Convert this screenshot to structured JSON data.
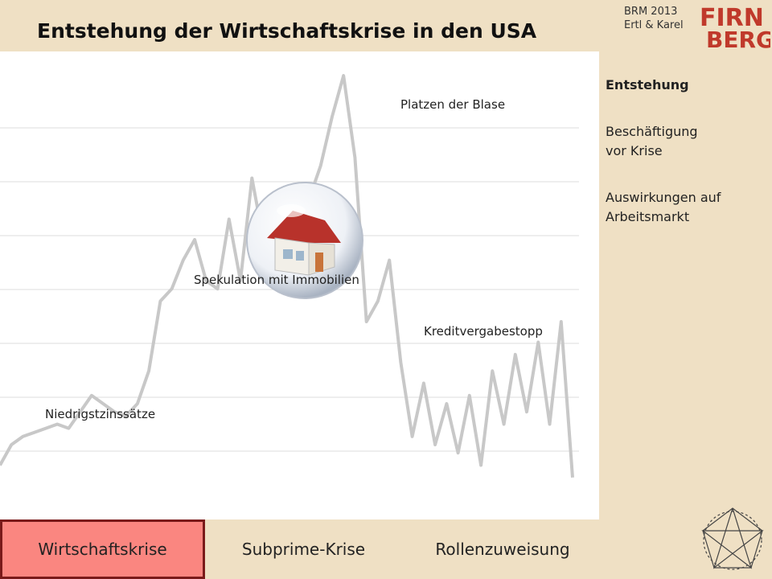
{
  "header": {
    "title": "Entstehung der Wirtschaftskrise in den USA",
    "meta_line1": "BRM 2013",
    "meta_line2": "Ertl & Karel",
    "logo_top": "FIRN",
    "logo_bottom": "BERG"
  },
  "chart": {
    "annotations": {
      "low_rates": "Niedrigstzinssätze",
      "speculation": "Spekulation mit Immobilien",
      "bubble_burst": "Platzen der Blase",
      "credit_stop": "Kreditvergabestopp"
    },
    "images": [
      "house-in-bubble-icon"
    ],
    "colors": {
      "line": "#c8c8c8",
      "grid": "#dddddd"
    }
  },
  "chart_data": {
    "type": "line",
    "title": "",
    "xlabel": "",
    "ylabel": "",
    "grid": true,
    "x": [
      0,
      2,
      4,
      6,
      8,
      10,
      12,
      14,
      16,
      18,
      20,
      22,
      24,
      26,
      28,
      30,
      32,
      34,
      36,
      38,
      40,
      42,
      44,
      46,
      48,
      50,
      52,
      54,
      56,
      58,
      60,
      62,
      64,
      66,
      68,
      70,
      72,
      74,
      76,
      78,
      80,
      82,
      84,
      86,
      88,
      90,
      92,
      94,
      96,
      98,
      100
    ],
    "values": [
      5,
      10,
      12,
      13,
      14,
      15,
      14,
      18,
      22,
      20,
      18,
      17,
      20,
      28,
      45,
      48,
      55,
      60,
      50,
      48,
      65,
      50,
      75,
      60,
      55,
      58,
      62,
      70,
      78,
      90,
      100,
      80,
      40,
      45,
      55,
      30,
      12,
      25,
      10,
      20,
      8,
      22,
      5,
      28,
      15,
      32,
      18,
      35,
      15,
      40,
      2
    ],
    "ylim": [
      0,
      100
    ]
  },
  "sidebar": {
    "items": [
      {
        "label": "Entstehung"
      },
      {
        "label_line1": "Beschäftigung",
        "label_line2": "vor Krise"
      },
      {
        "label_line1": "Auswirkungen auf",
        "label_line2": "Arbeitsmarkt"
      }
    ]
  },
  "bottom_tabs": [
    {
      "label": "Wirtschaftskrise"
    },
    {
      "label": "Subprime-Krise"
    },
    {
      "label": "Rollenzuweisung"
    }
  ],
  "colors": {
    "background": "#efe0c4",
    "active_tab": "#fa8680",
    "active_tab_border": "#7a1a1a",
    "logo": "#c0392b"
  }
}
